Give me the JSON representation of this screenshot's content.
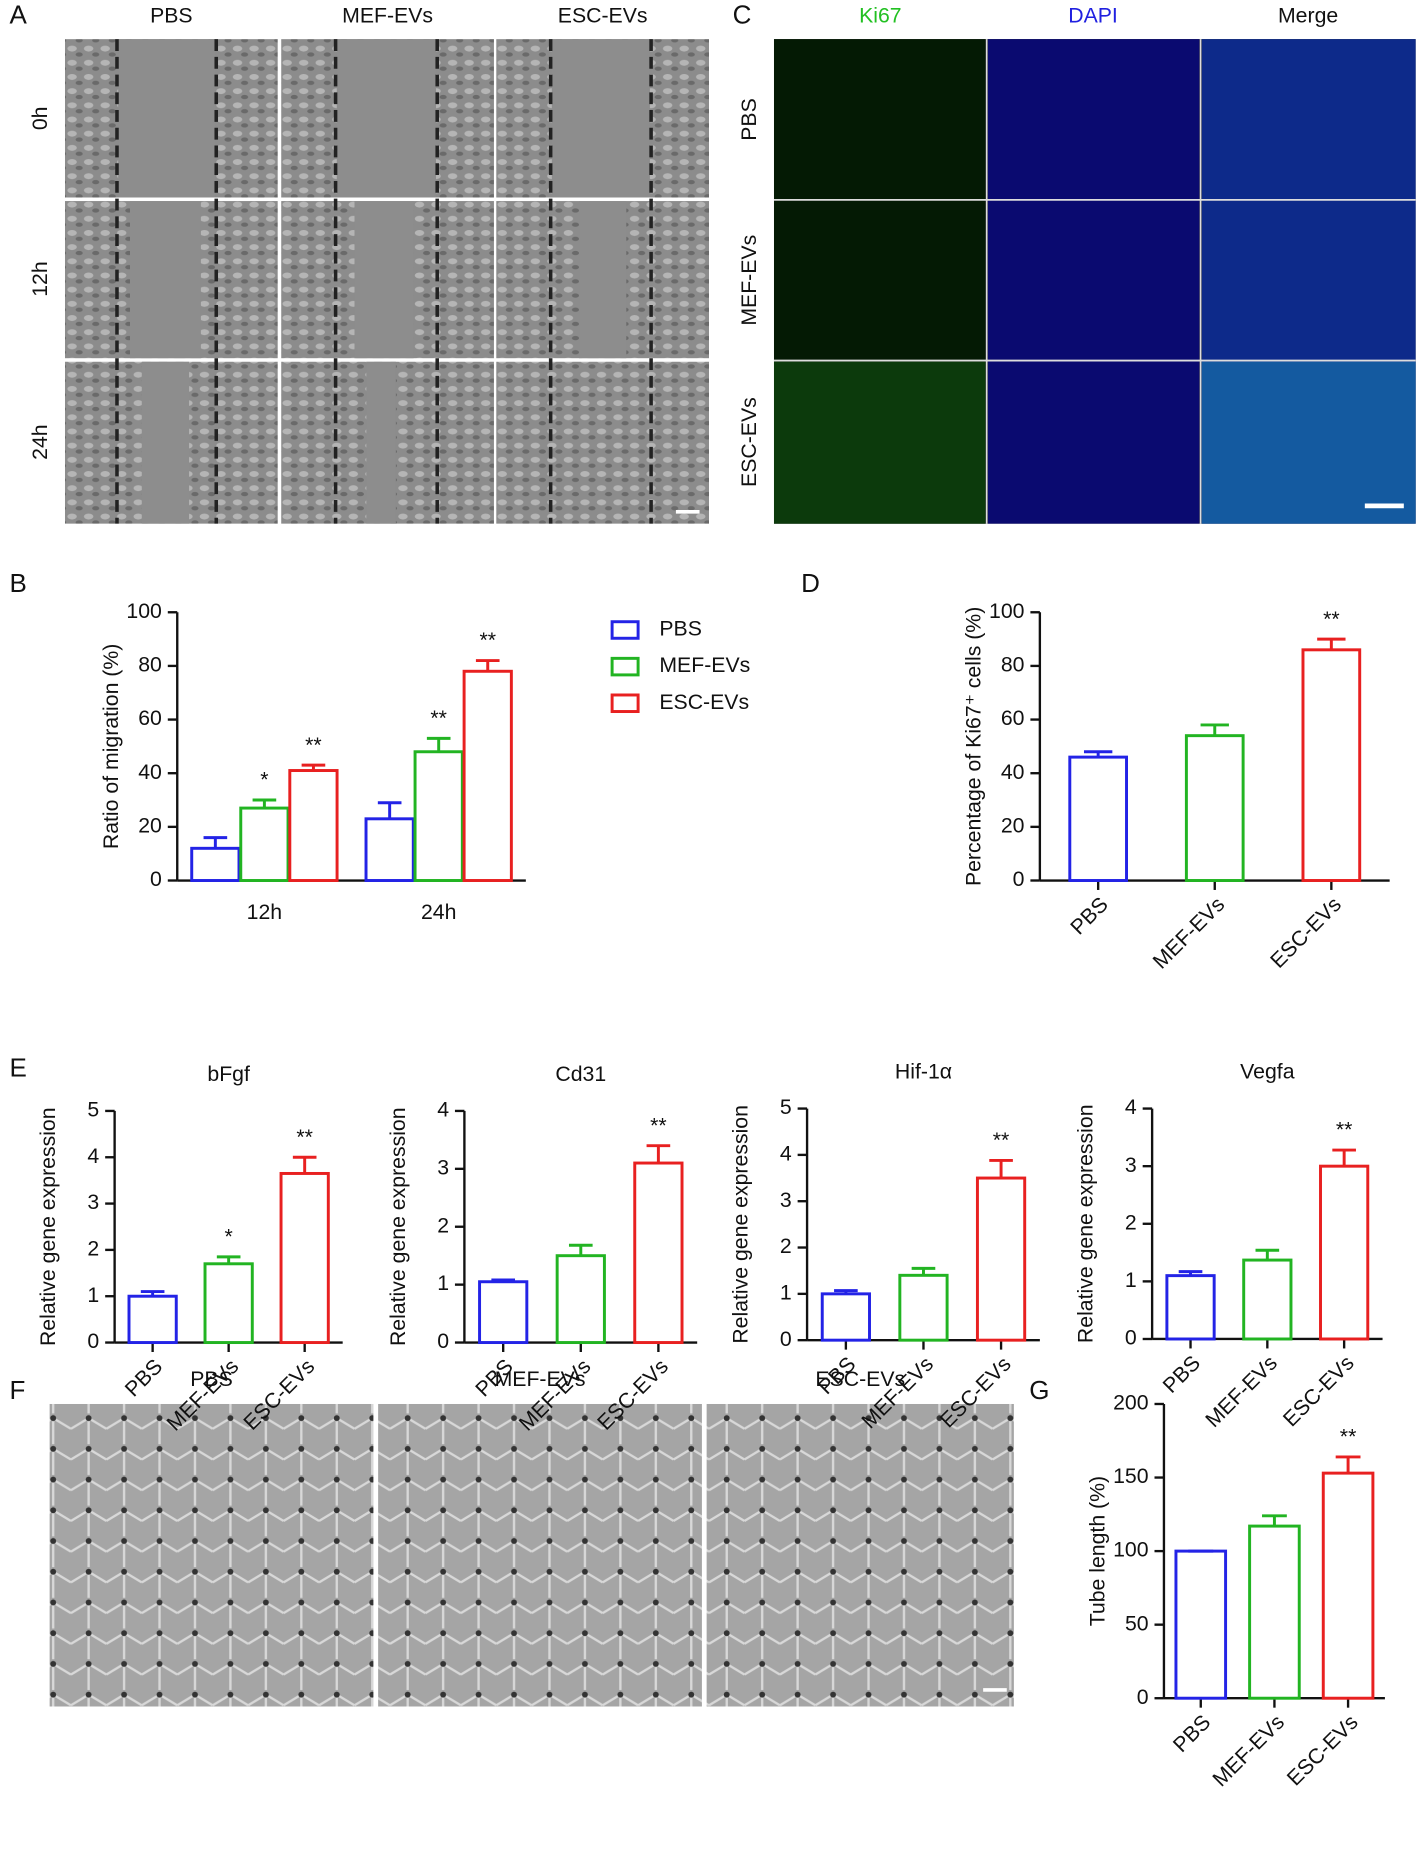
{
  "panel_letters": [
    "A",
    "B",
    "C",
    "D",
    "E",
    "F",
    "G"
  ],
  "panel_a": {
    "columns": [
      "PBS",
      "MEF-EVs",
      "ESC-EVs"
    ],
    "rows": [
      "0h",
      "12h",
      "24h"
    ]
  },
  "panel_c": {
    "columns": [
      "Ki67",
      "DAPI",
      "Merge"
    ],
    "rows": [
      "PBS",
      "MEF-EVs",
      "ESC-EVs"
    ]
  },
  "panel_f": {
    "columns": [
      "PBS",
      "MEF-EVs",
      "ESC-EVs"
    ]
  },
  "chart_data": [
    {
      "type": "bar",
      "y_label": "Ratio of migration (%)",
      "categories": [
        "12h",
        "24h"
      ],
      "series": [
        {
          "name": "PBS",
          "color": "#2323e6",
          "values": [
            12,
            23
          ],
          "errors": [
            4,
            6
          ]
        },
        {
          "name": "MEF-EVs",
          "color": "#22b422",
          "values": [
            27,
            48
          ],
          "errors": [
            3,
            5
          ],
          "significance": [
            "*",
            "**"
          ]
        },
        {
          "name": "ESC-EVs",
          "color": "#e82020",
          "values": [
            41,
            78
          ],
          "errors": [
            2,
            4
          ],
          "significance": [
            "**",
            "**"
          ]
        }
      ],
      "ylim": [
        0,
        100
      ],
      "yticks": [
        0,
        20,
        40,
        60,
        80,
        100
      ],
      "legend": "right"
    },
    {
      "type": "bar",
      "y_label": "Percentage of Ki67⁺ cells (%)",
      "categories": [
        "PBS",
        "MEF-EVs",
        "ESC-EVs"
      ],
      "values": [
        46,
        54,
        86
      ],
      "errors": [
        2,
        4,
        4
      ],
      "significance": [
        null,
        null,
        "**"
      ],
      "colors": [
        "#2323e6",
        "#22b422",
        "#e82020"
      ],
      "ylim": [
        0,
        100
      ],
      "yticks": [
        0,
        20,
        40,
        60,
        80,
        100
      ]
    },
    {
      "type": "bar",
      "title": "bFgf",
      "y_label": "Relative gene expression",
      "categories": [
        "PBS",
        "MEF-EVs",
        "ESC-EVs"
      ],
      "values": [
        1.0,
        1.7,
        3.65
      ],
      "errors": [
        0.1,
        0.15,
        0.35
      ],
      "significance": [
        null,
        "*",
        "**"
      ],
      "colors": [
        "#2323e6",
        "#22b422",
        "#e82020"
      ],
      "ylim": [
        0,
        5
      ],
      "yticks": [
        0,
        1,
        2,
        3,
        4,
        5
      ]
    },
    {
      "type": "bar",
      "title": "Cd31",
      "y_label": "Relative gene expression",
      "categories": [
        "PBS",
        "MEF-EVs",
        "ESC-EVs"
      ],
      "values": [
        1.05,
        1.5,
        3.1
      ],
      "errors": [
        0.03,
        0.18,
        0.3
      ],
      "significance": [
        null,
        null,
        "**"
      ],
      "colors": [
        "#2323e6",
        "#22b422",
        "#e82020"
      ],
      "ylim": [
        0,
        4
      ],
      "yticks": [
        0,
        1,
        2,
        3,
        4
      ]
    },
    {
      "type": "bar",
      "title": "Hif-1α",
      "y_label": "Relative gene expression",
      "categories": [
        "PBS",
        "MEF-EVs",
        "ESC-EVs"
      ],
      "values": [
        1.0,
        1.4,
        3.5
      ],
      "errors": [
        0.07,
        0.15,
        0.38
      ],
      "significance": [
        null,
        null,
        "**"
      ],
      "colors": [
        "#2323e6",
        "#22b422",
        "#e82020"
      ],
      "ylim": [
        0,
        5
      ],
      "yticks": [
        0,
        1,
        2,
        3,
        4,
        5
      ]
    },
    {
      "type": "bar",
      "title": "Vegfa",
      "y_label": "Relative gene expression",
      "categories": [
        "PBS",
        "MEF-EVs",
        "ESC-EVs"
      ],
      "values": [
        1.1,
        1.37,
        3.0
      ],
      "errors": [
        0.07,
        0.17,
        0.28
      ],
      "significance": [
        null,
        null,
        "**"
      ],
      "colors": [
        "#2323e6",
        "#22b422",
        "#e82020"
      ],
      "ylim": [
        0,
        4
      ],
      "yticks": [
        0,
        1,
        2,
        3,
        4
      ]
    },
    {
      "type": "bar",
      "y_label": "Tube length (%)",
      "categories": [
        "PBS",
        "MEF-EVs",
        "ESC-EVs"
      ],
      "values": [
        100,
        117,
        153
      ],
      "errors": [
        0,
        7,
        11
      ],
      "significance": [
        null,
        null,
        "**"
      ],
      "colors": [
        "#2323e6",
        "#22b422",
        "#e82020"
      ],
      "ylim": [
        0,
        200
      ],
      "yticks": [
        0,
        50,
        100,
        150,
        200
      ]
    }
  ]
}
